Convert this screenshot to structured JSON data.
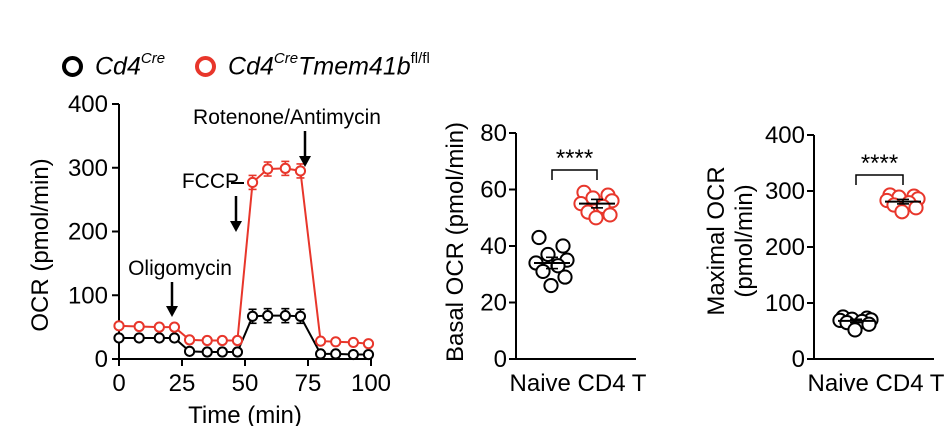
{
  "colors": {
    "wt": "#000000",
    "ko": "#e8362b"
  },
  "legend": [
    {
      "base": "Cd4",
      "sup": "Cre",
      "tail": "",
      "tail_sup": "",
      "color": "#000000"
    },
    {
      "base": "Cd4",
      "sup": "Cre",
      "tail": "Tmem41b",
      "tail_sup": "fl/fl",
      "color": "#e8362b"
    }
  ],
  "chart_data": [
    {
      "type": "line",
      "xlabel": "Time (min)",
      "ylabel": "OCR (pmol/min)",
      "xlim": [
        0,
        100
      ],
      "ylim": [
        0,
        400
      ],
      "xticks": [
        0,
        25,
        50,
        75,
        100
      ],
      "yticks": [
        0,
        100,
        200,
        300,
        400
      ],
      "series": [
        {
          "color": "#000000",
          "x": [
            0,
            8,
            16,
            22,
            28,
            35,
            41,
            47,
            53,
            59,
            66,
            72,
            80,
            86,
            93,
            99
          ],
          "y": [
            33,
            33,
            33,
            33,
            12,
            11,
            11,
            11,
            67,
            68,
            68,
            67,
            8,
            8,
            7,
            7
          ]
        },
        {
          "color": "#e8362b",
          "x": [
            0,
            8,
            16,
            22,
            28,
            35,
            41,
            47,
            53,
            59,
            66,
            72,
            80,
            86,
            93,
            99
          ],
          "y": [
            52,
            51,
            50,
            50,
            30,
            29,
            29,
            29,
            277,
            298,
            299,
            295,
            28,
            27,
            26,
            24
          ]
        }
      ],
      "annotations": [
        {
          "text": "Oligomycin",
          "x": 21
        },
        {
          "text": "FCCP",
          "x": 46
        },
        {
          "text": "Rotenone/Antimycin",
          "x": 72
        }
      ]
    },
    {
      "type": "scatter",
      "ylabel": "Basal OCR (pmol/min)",
      "xlabel": "Naive CD4 T",
      "ylim": [
        0,
        80
      ],
      "yticks": [
        0,
        20,
        40,
        60,
        80
      ],
      "significance": "****",
      "series": [
        {
          "color": "#000000",
          "mean": 34,
          "sem": 2,
          "values": [
            43,
            40,
            37,
            35,
            34,
            33,
            31,
            29,
            26
          ]
        },
        {
          "color": "#e8362b",
          "mean": 55,
          "sem": 1.5,
          "values": [
            59,
            58,
            57,
            56,
            55,
            54,
            52,
            51,
            50
          ]
        }
      ]
    },
    {
      "type": "scatter",
      "ylabel": "Maximal OCR",
      "ylabel2": "(pmol/min)",
      "xlabel": "Naive CD4 T",
      "ylim": [
        0,
        400
      ],
      "yticks": [
        0,
        100,
        200,
        300,
        400
      ],
      "significance": "****",
      "series": [
        {
          "color": "#000000",
          "mean": 68,
          "sem": 3,
          "values": [
            75,
            73,
            71,
            70,
            69,
            67,
            65,
            62,
            52
          ]
        },
        {
          "color": "#e8362b",
          "mean": 281,
          "sem": 4,
          "values": [
            293,
            291,
            289,
            286,
            283,
            279,
            275,
            270,
            263
          ]
        }
      ]
    }
  ]
}
